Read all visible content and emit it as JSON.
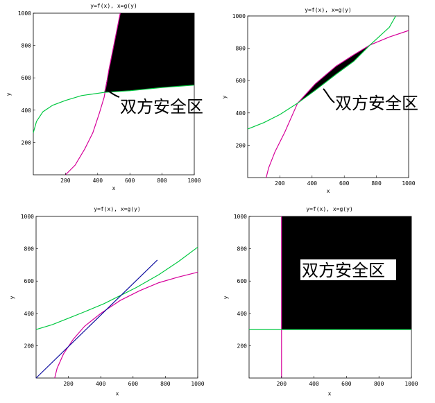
{
  "chart_data": [
    {
      "type": "line",
      "title": "y=f(x), x=g(y)",
      "xlabel": "x",
      "ylabel": "y",
      "xlim": [
        0,
        1000
      ],
      "ylim": [
        0,
        1000
      ],
      "x_ticks": [
        "200",
        "400",
        "600",
        "800",
        "1000"
      ],
      "y_ticks": [
        "200",
        "400",
        "600",
        "800",
        "1000"
      ],
      "annotation": "双方安全区",
      "region": "between-curves",
      "series": [
        {
          "color": "#d6009a",
          "points": [
            [
              200,
              0
            ],
            [
              260,
              60
            ],
            [
              320,
              160
            ],
            [
              370,
              260
            ],
            [
              410,
              380
            ],
            [
              440,
              480
            ],
            [
              470,
              650
            ],
            [
              500,
              800
            ],
            [
              540,
              1000
            ]
          ]
        },
        {
          "color": "#00c840",
          "points": [
            [
              0,
              260
            ],
            [
              20,
              330
            ],
            [
              60,
              390
            ],
            [
              120,
              430
            ],
            [
              200,
              460
            ],
            [
              300,
              490
            ],
            [
              440,
              510
            ],
            [
              600,
              520
            ],
            [
              800,
              540
            ],
            [
              1000,
              555
            ]
          ]
        }
      ]
    },
    {
      "type": "line",
      "title": "y=f(x), x=g(y)",
      "xlabel": "x",
      "ylabel": "y",
      "xlim": [
        0,
        1000
      ],
      "ylim": [
        0,
        1000
      ],
      "x_ticks": [
        "200",
        "400",
        "600",
        "800",
        "1000"
      ],
      "y_ticks": [
        "200",
        "400",
        "600",
        "800",
        "1000"
      ],
      "annotation": "双方安全区",
      "region": "between-curves",
      "series": [
        {
          "color": "#d6009a",
          "points": [
            [
              115,
              0
            ],
            [
              130,
              60
            ],
            [
              170,
              160
            ],
            [
              230,
              280
            ],
            [
              310,
              460
            ],
            [
              420,
              580
            ],
            [
              550,
              690
            ],
            [
              660,
              760
            ],
            [
              760,
              820
            ],
            [
              880,
              870
            ],
            [
              1000,
              910
            ]
          ]
        },
        {
          "color": "#00c840",
          "points": [
            [
              0,
              300
            ],
            [
              100,
              340
            ],
            [
              200,
              390
            ],
            [
              310,
              460
            ],
            [
              420,
              540
            ],
            [
              550,
              640
            ],
            [
              660,
              720
            ],
            [
              760,
              820
            ],
            [
              880,
              930
            ],
            [
              920,
              1000
            ]
          ]
        }
      ]
    },
    {
      "type": "line",
      "title": "y=f(x), x=g(y)",
      "xlabel": "x",
      "ylabel": "y",
      "xlim": [
        0,
        1000
      ],
      "ylim": [
        0,
        1000
      ],
      "x_ticks": [
        "200",
        "400",
        "600",
        "800",
        "1000"
      ],
      "y_ticks": [
        "200",
        "400",
        "600",
        "800",
        "1000"
      ],
      "annotation": "",
      "region": "none",
      "series": [
        {
          "color": "#d6009a",
          "points": [
            [
              115,
              0
            ],
            [
              130,
              60
            ],
            [
              170,
              150
            ],
            [
              230,
              240
            ],
            [
              300,
              320
            ],
            [
              400,
              400
            ],
            [
              520,
              480
            ],
            [
              640,
              540
            ],
            [
              760,
              590
            ],
            [
              880,
              625
            ],
            [
              1000,
              655
            ]
          ]
        },
        {
          "color": "#00c840",
          "points": [
            [
              0,
              300
            ],
            [
              100,
              330
            ],
            [
              200,
              370
            ],
            [
              300,
              410
            ],
            [
              420,
              460
            ],
            [
              520,
              510
            ],
            [
              620,
              560
            ],
            [
              760,
              640
            ],
            [
              880,
              720
            ],
            [
              1000,
              810
            ]
          ]
        },
        {
          "color": "#1010a0",
          "points": [
            [
              0,
              0
            ],
            [
              750,
              730
            ]
          ]
        }
      ]
    },
    {
      "type": "line",
      "title": "y=f(x), x=g(y)",
      "xlabel": "x",
      "ylabel": "y",
      "xlim": [
        0,
        1000
      ],
      "ylim": [
        0,
        1000
      ],
      "x_ticks": [
        "200",
        "400",
        "600",
        "800",
        "1000"
      ],
      "y_ticks": [
        "200",
        "400",
        "600",
        "800",
        "1000"
      ],
      "annotation": "双方安全区",
      "region": "rect",
      "series": [
        {
          "color": "#d6009a",
          "points": [
            [
              200,
              0
            ],
            [
              200,
              1000
            ]
          ]
        },
        {
          "color": "#00c840",
          "points": [
            [
              0,
              300
            ],
            [
              1000,
              300
            ]
          ]
        }
      ]
    }
  ]
}
